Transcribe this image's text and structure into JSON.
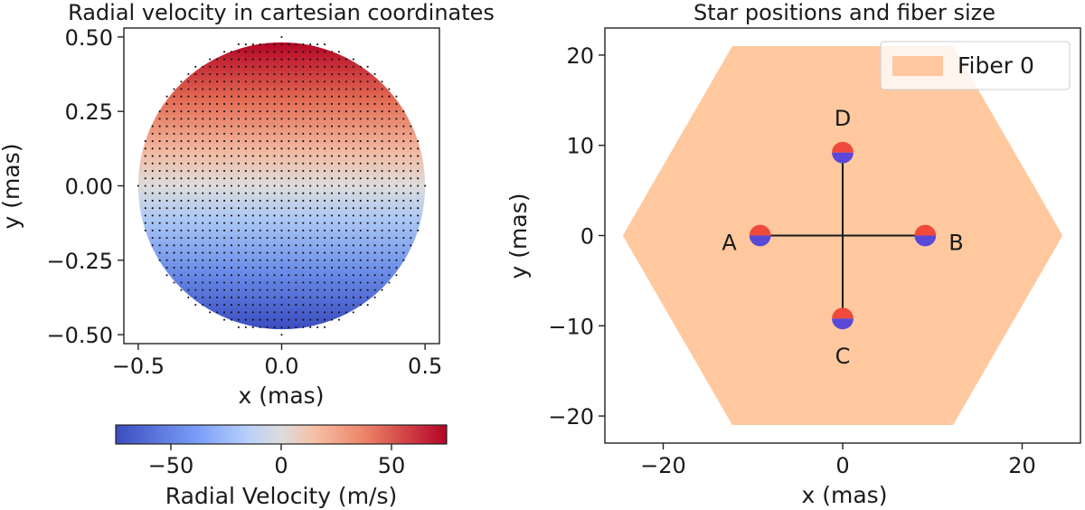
{
  "figure": {
    "panels": 2
  },
  "chart_data": [
    {
      "type": "heatmap",
      "title": "Radial velocity in cartesian coordinates",
      "xlabel": "x (mas)",
      "ylabel": "y (mas)",
      "xlim": [
        -0.55,
        0.55
      ],
      "ylim": [
        -0.53,
        0.53
      ],
      "xticks": [
        -0.5,
        0.0,
        0.5
      ],
      "xtick_labels": [
        "−0.5",
        "0.0",
        "0.5"
      ],
      "yticks": [
        0.5,
        0.25,
        0.0,
        -0.25,
        -0.5
      ],
      "ytick_labels": [
        "0.50",
        "0.25",
        "0.00",
        "−0.25",
        "−0.50"
      ],
      "disk_radius": 0.5,
      "field": "radial velocity proportional to y",
      "vmin": -75,
      "vmax": 75,
      "colormap": "coolwarm",
      "grid_spacing": 0.025,
      "colorbar": {
        "label": "Radial Velocity (m/s)",
        "ticks": [
          -50,
          0,
          50
        ],
        "tick_labels": [
          "−50",
          "0",
          "50"
        ],
        "orientation": "horizontal"
      }
    },
    {
      "type": "scatter",
      "title": "Star positions and fiber size",
      "xlabel": "x (mas)",
      "ylabel": "y (mas)",
      "xlim": [
        -26.5,
        26.5
      ],
      "ylim": [
        -23,
        23
      ],
      "xticks": [
        -20,
        0,
        20
      ],
      "xtick_labels": [
        "−20",
        "0",
        "20"
      ],
      "yticks": [
        20,
        10,
        0,
        -10,
        -20
      ],
      "ytick_labels": [
        "20",
        "10",
        "0",
        "−10",
        "−20"
      ],
      "fiber": {
        "name": "Fiber 0",
        "color": "#ffc89e",
        "vertices": [
          [
            -12.3,
            21
          ],
          [
            12.3,
            21
          ],
          [
            24.5,
            0
          ],
          [
            12.3,
            -21
          ],
          [
            -12.3,
            -21
          ],
          [
            -24.5,
            0
          ]
        ]
      },
      "legend": {
        "entries": [
          "Fiber 0"
        ],
        "location": "upper right"
      },
      "stars": [
        {
          "name": "A",
          "x": -9.2,
          "y": 0,
          "label_side": "left"
        },
        {
          "name": "B",
          "x": 9.2,
          "y": 0,
          "label_side": "right"
        },
        {
          "name": "C",
          "x": 0,
          "y": -9.2,
          "label_side": "below"
        },
        {
          "name": "D",
          "x": 0,
          "y": 9.2,
          "label_side": "above"
        }
      ],
      "star_radius": 1.2,
      "star_colors": {
        "top": "#f04a3c",
        "bottom": "#5a48d8"
      },
      "baselines": [
        {
          "from": "A",
          "to": "B"
        },
        {
          "from": "C",
          "to": "D"
        }
      ]
    }
  ]
}
